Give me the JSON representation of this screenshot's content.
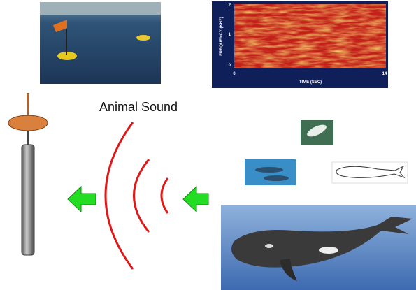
{
  "labels": {
    "animal_sound": "Animal Sound"
  },
  "spectrogram": {
    "y_axis_label": "FREQUENCY (KHZ)",
    "x_axis_label": "TIME (SEC)",
    "yticks": [
      0,
      1,
      2
    ],
    "xticks": [
      0,
      14
    ]
  }
}
